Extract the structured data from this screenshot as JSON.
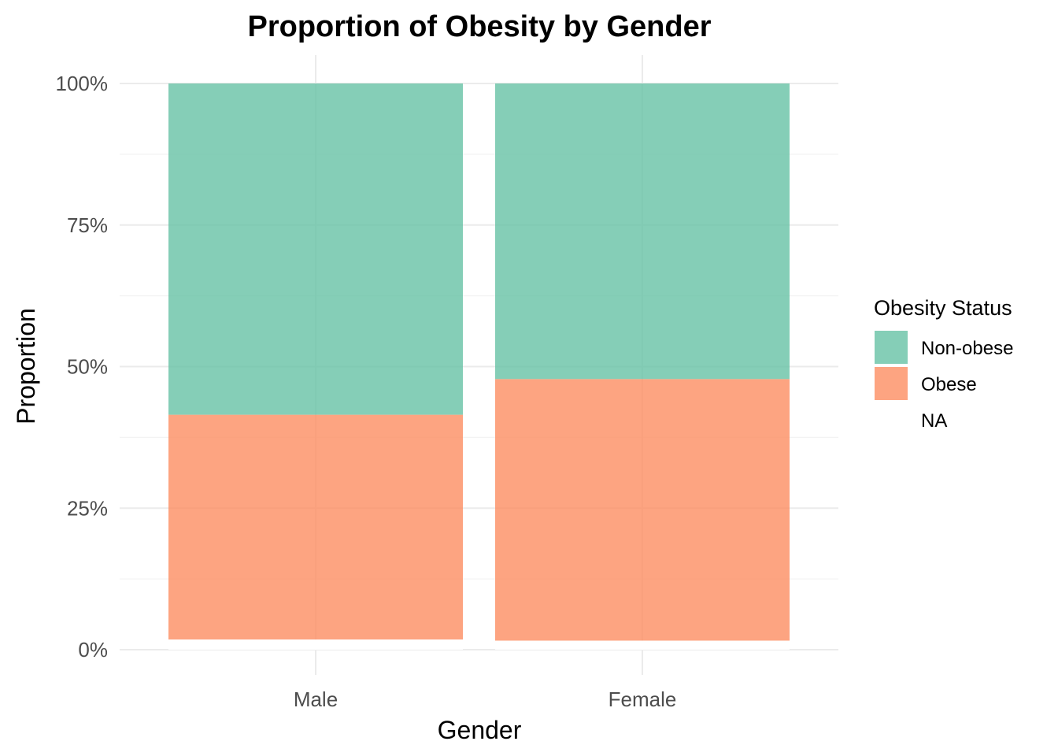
{
  "chart_data": {
    "type": "bar",
    "stacked": true,
    "title": "Proportion of Obesity by Gender",
    "xlabel": "Gender",
    "ylabel": "Proportion",
    "categories": [
      "Male",
      "Female"
    ],
    "y_ticks": [
      "0%",
      "25%",
      "50%",
      "75%",
      "100%"
    ],
    "ylim": [
      0,
      1
    ],
    "series": [
      {
        "name": "NA",
        "values": [
          0.018,
          0.016
        ],
        "color": "#ffffff"
      },
      {
        "name": "Obese",
        "values": [
          0.397,
          0.462
        ],
        "color": "#fc8d62"
      },
      {
        "name": "Non-obese",
        "values": [
          0.585,
          0.522
        ],
        "color": "#66c2a5"
      }
    ],
    "legend": {
      "title": "Obesity Status",
      "position": "right",
      "items": [
        {
          "label": "Non-obese",
          "color": "#66c2a5"
        },
        {
          "label": "Obese",
          "color": "#fc8d62"
        },
        {
          "label": "NA",
          "color": "#ffffff"
        }
      ]
    },
    "grid": true
  }
}
